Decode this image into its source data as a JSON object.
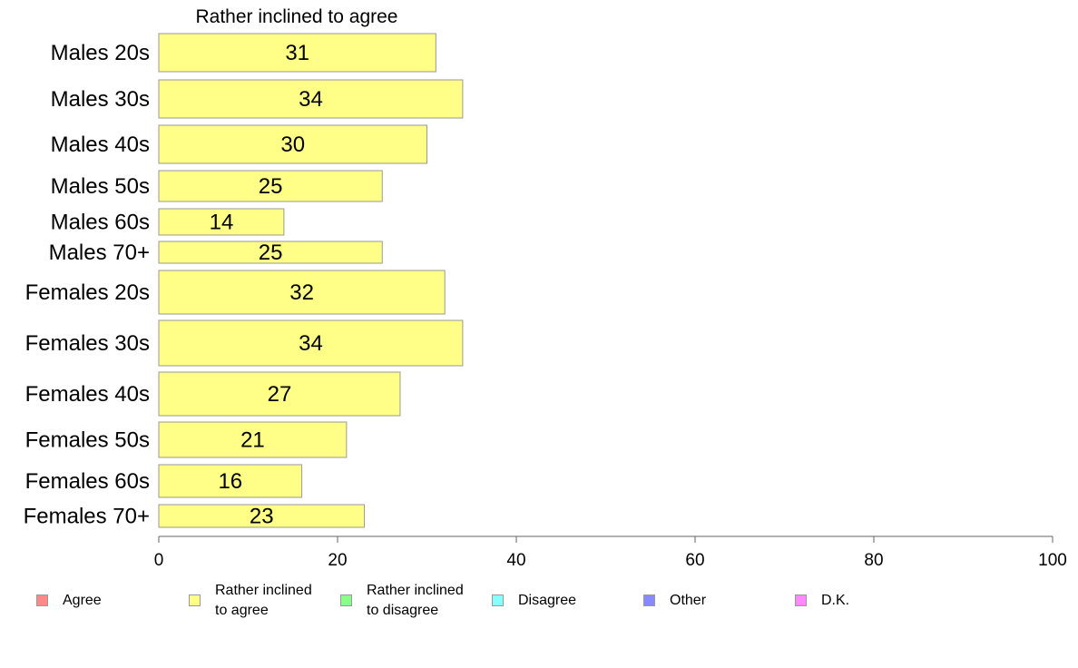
{
  "chart_data": {
    "type": "bar",
    "orientation": "horizontal",
    "title": "Rather inclined to agree",
    "categories": [
      "Males 20s",
      "Males 30s",
      "Males 40s",
      "Males 50s",
      "Males 60s",
      "Males 70+",
      "Females 20s",
      "Females 30s",
      "Females 40s",
      "Females 50s",
      "Females 60s",
      "Females 70+"
    ],
    "values": [
      31,
      34,
      30,
      25,
      14,
      25,
      32,
      34,
      27,
      21,
      16,
      23
    ],
    "xlim": [
      0,
      100
    ],
    "xticks": [
      "0",
      "20",
      "40",
      "60",
      "80",
      "100"
    ],
    "bar_color": "#ffff88",
    "bar_border": "#999999",
    "legend_placement": "bottom",
    "legend": [
      {
        "label": "Agree",
        "color": "#ff8888"
      },
      {
        "label": "Rather inclined\nto agree",
        "color": "#ffff88"
      },
      {
        "label": "Rather inclined\nto disagree",
        "color": "#88ff88"
      },
      {
        "label": "Disagree",
        "color": "#88ffff"
      },
      {
        "label": "Other",
        "color": "#8888ff"
      },
      {
        "label": "D.K.",
        "color": "#ff88ff"
      }
    ]
  }
}
